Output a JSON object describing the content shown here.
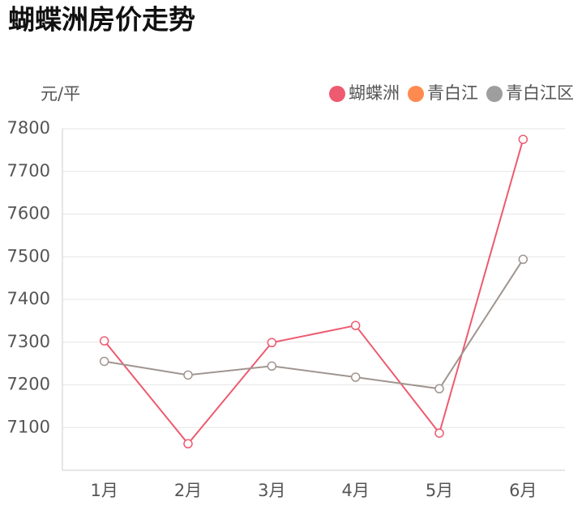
{
  "chart_data": {
    "type": "line",
    "title": "蝴蝶洲房价走势",
    "y_label": "元/平",
    "categories": [
      "1月",
      "2月",
      "3月",
      "4月",
      "5月",
      "6月"
    ],
    "series": [
      {
        "name": "蝴蝶洲",
        "color": "#ee5a6f",
        "values": [
          7303,
          7062,
          7299,
          7339,
          7087,
          7775
        ]
      },
      {
        "name": "青白江",
        "color": "#ff8a50",
        "values": [
          null,
          null,
          null,
          null,
          null,
          null
        ]
      },
      {
        "name": "青白江区",
        "color": "#a0958f",
        "values": [
          7255,
          7223,
          7244,
          7218,
          7191,
          7494
        ]
      }
    ],
    "ylim": [
      7000,
      7800
    ],
    "yticks": [
      7100,
      7200,
      7300,
      7400,
      7500,
      7600,
      7700,
      7800
    ],
    "grid": true,
    "legend": "top-right"
  }
}
